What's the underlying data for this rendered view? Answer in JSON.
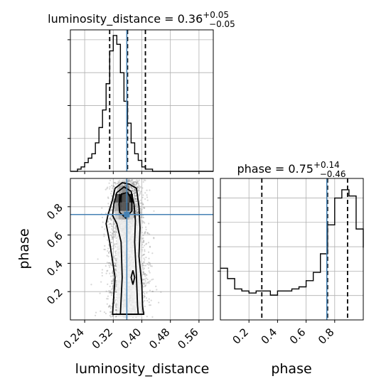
{
  "chart_data": {
    "type": "corner",
    "parameters": [
      "luminosity_distance",
      "phase"
    ],
    "titles": {
      "luminosity_distance": {
        "name": "luminosity_distance",
        "median": "0.36",
        "plus": "+0.05",
        "minus": "−0.05"
      },
      "phase": {
        "name": "phase",
        "median": "0.75",
        "plus": "+0.14",
        "minus": "−0.46"
      }
    },
    "xlabels": {
      "luminosity_distance": "luminosity_distance",
      "phase": "phase"
    },
    "ylabels": {
      "phase": "phase"
    },
    "ranges": {
      "luminosity_distance": [
        0.2,
        0.6
      ],
      "phase": [
        0.0,
        1.0
      ]
    },
    "ticks": {
      "luminosity_distance": [
        "0.24",
        "0.32",
        "0.40",
        "0.48",
        "0.56"
      ],
      "luminosity_distance_values": [
        0.24,
        0.32,
        0.4,
        0.48,
        0.56
      ],
      "phase": [
        "0.2",
        "0.4",
        "0.6",
        "0.8"
      ],
      "phase_values": [
        0.2,
        0.4,
        0.6,
        0.8
      ]
    },
    "truths": {
      "luminosity_distance": 0.358,
      "phase": 0.745
    },
    "quantiles": {
      "luminosity_distance": [
        0.31,
        0.36,
        0.41
      ],
      "phase": [
        0.29,
        0.75,
        0.89
      ]
    },
    "hist_luminosity_distance": {
      "x_start": 0.2,
      "bin_width": 0.01,
      "counts": [
        0,
        0,
        1,
        2,
        4,
        6,
        8,
        13,
        20,
        28,
        40,
        55,
        62,
        58,
        45,
        32,
        22,
        13,
        8,
        5,
        2,
        1,
        1,
        0,
        0,
        0,
        0,
        0,
        0,
        0,
        0,
        0,
        0,
        0,
        0,
        0,
        0,
        0,
        0,
        0
      ]
    },
    "hist_phase": {
      "x_start": 0.0,
      "bin_width": 0.05,
      "counts": [
        25,
        20,
        15,
        14,
        13,
        14,
        14,
        12,
        14,
        14,
        15,
        16,
        19,
        23,
        32,
        46,
        59,
        63,
        60,
        44,
        35
      ]
    },
    "grid": true,
    "colors": {
      "truth": "#4682b4",
      "quantile": "#000000",
      "hist": "#000000",
      "contour": "#000000",
      "points": "#7a7a7a"
    }
  }
}
